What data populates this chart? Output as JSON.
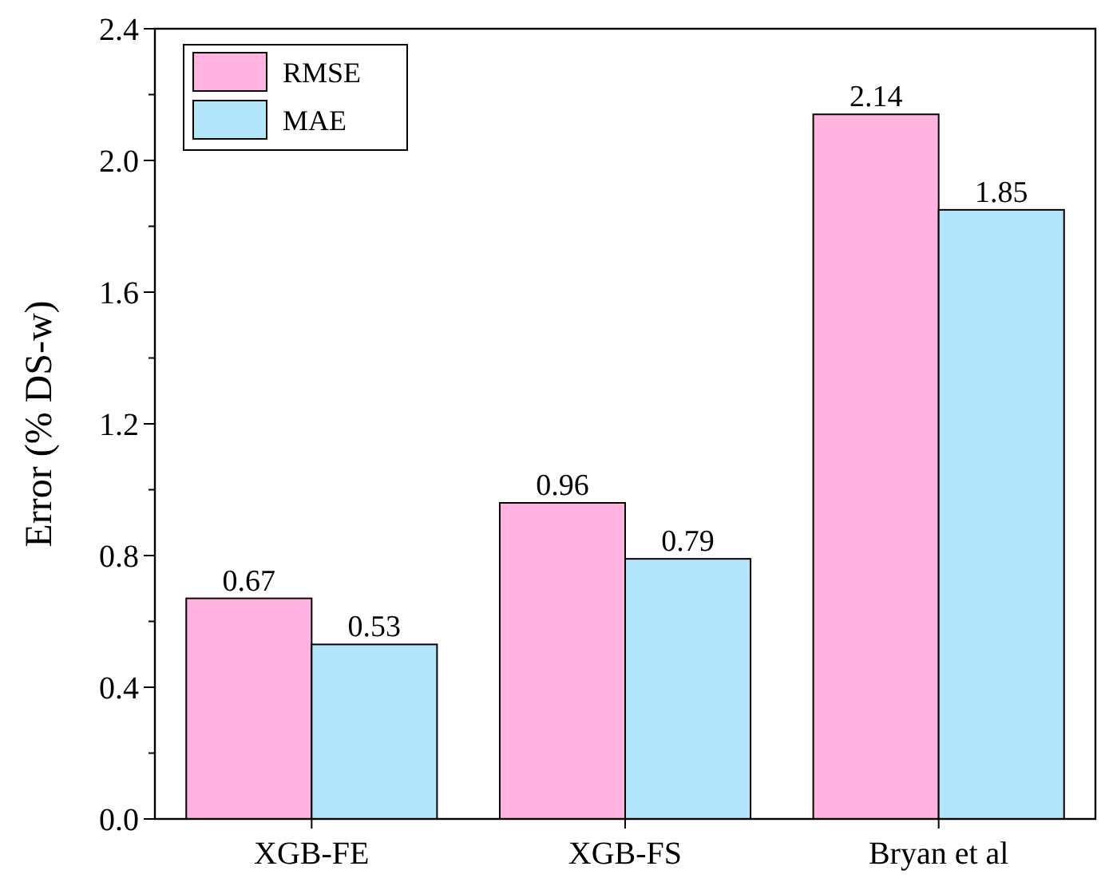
{
  "chart_data": {
    "type": "bar",
    "ylabel": "Error (% DS-w)",
    "categories": [
      "XGB-FE",
      "XGB-FS",
      "Bryan et al"
    ],
    "series": [
      {
        "name": "RMSE",
        "color": "#ffb3de",
        "values": [
          0.67,
          0.96,
          2.14
        ]
      },
      {
        "name": "MAE",
        "color": "#b3e6fb",
        "values": [
          0.53,
          0.79,
          1.85
        ]
      }
    ],
    "ylim": [
      0,
      2.4
    ],
    "yticks": [
      "0.0",
      "0.4",
      "0.8",
      "1.2",
      "1.6",
      "2.0",
      "2.4"
    ],
    "data_labels": true,
    "legend": "top left",
    "grid": false
  }
}
